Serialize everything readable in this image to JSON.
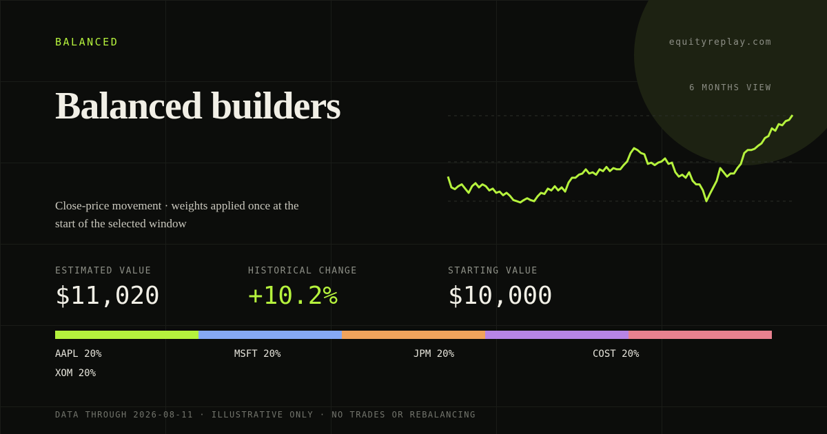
{
  "header": {
    "eyebrow": "BALANCED",
    "site": "equityreplay.com",
    "title": "Balanced builders",
    "window_label": "6 MONTHS VIEW",
    "description": "Close-price movement · weights applied once at the start of the selected window"
  },
  "chart_data": {
    "type": "line",
    "color": "#b5f23d",
    "ylim": [
      9500,
      11100
    ],
    "values": [
      10000,
      9820,
      9790,
      9840,
      9870,
      9800,
      9730,
      9840,
      9890,
      9820,
      9870,
      9840,
      9770,
      9800,
      9730,
      9750,
      9690,
      9730,
      9680,
      9610,
      9590,
      9570,
      9610,
      9640,
      9610,
      9590,
      9670,
      9730,
      9710,
      9800,
      9770,
      9840,
      9770,
      9820,
      9750,
      9900,
      9980,
      9980,
      10030,
      10050,
      10120,
      10050,
      10070,
      10030,
      10120,
      10090,
      10160,
      10090,
      10140,
      10120,
      10120,
      10190,
      10250,
      10390,
      10470,
      10440,
      10390,
      10370,
      10210,
      10230,
      10190,
      10230,
      10250,
      10300,
      10210,
      10230,
      10070,
      10000,
      10030,
      9980,
      10070,
      9930,
      9870,
      9870,
      9770,
      9590,
      9710,
      9820,
      9930,
      10140,
      10070,
      10000,
      10050,
      10050,
      10140,
      10210,
      10390,
      10440,
      10440,
      10460,
      10510,
      10550,
      10640,
      10670,
      10800,
      10760,
      10870,
      10850,
      10920,
      10940,
      11020
    ]
  },
  "stats": [
    {
      "label": "ESTIMATED VALUE",
      "value": "$11,020"
    },
    {
      "label": "HISTORICAL CHANGE",
      "value": "+10.2%"
    },
    {
      "label": "STARTING VALUE",
      "value": "$10,000"
    }
  ],
  "holdings": [
    {
      "name": "AAPL",
      "weight": 20,
      "label": "20%",
      "color": "#b5f23d"
    },
    {
      "name": "MSFT",
      "weight": 20,
      "label": "20%",
      "color": "#86a9f5"
    },
    {
      "name": "JPM",
      "weight": 20,
      "label": "20%",
      "color": "#f0a35c"
    },
    {
      "name": "COST",
      "weight": 20,
      "label": "20%",
      "color": "#b784e6"
    },
    {
      "name": "XOM",
      "weight": 20,
      "label": "20%",
      "color": "#e8818f"
    }
  ],
  "footer": "DATA THROUGH 2026-08-11 · ILLUSTRATIVE ONLY · NO TRADES OR REBALANCING"
}
